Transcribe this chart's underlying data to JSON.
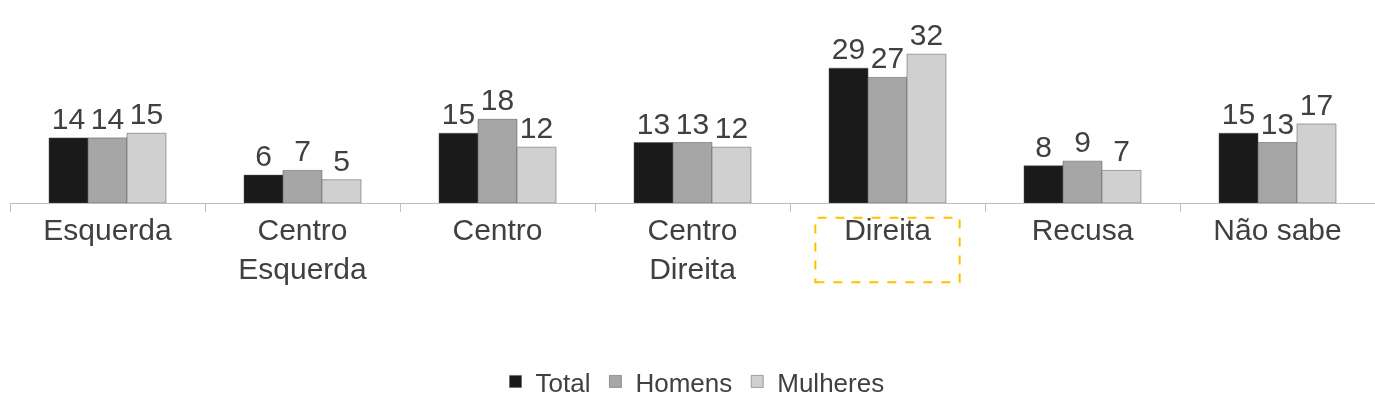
{
  "chart_data": {
    "type": "bar",
    "categories": [
      "Esquerda",
      "Centro\nEsquerda",
      "Centro",
      "Centro\nDireita",
      "Direita",
      "Recusa",
      "Não sabe"
    ],
    "series": [
      {
        "name": "Total",
        "color": "#1a1a1a",
        "values": [
          14,
          6,
          15,
          13,
          29,
          8,
          15
        ]
      },
      {
        "name": "Homens",
        "color": "#a6a6a6",
        "values": [
          14,
          7,
          18,
          13,
          27,
          9,
          13
        ]
      },
      {
        "name": "Mulheres",
        "color": "#d0d0d0",
        "values": [
          15,
          5,
          12,
          12,
          32,
          7,
          17
        ]
      }
    ],
    "data_labels": true,
    "grid": false,
    "legend": "bottom"
  }
}
